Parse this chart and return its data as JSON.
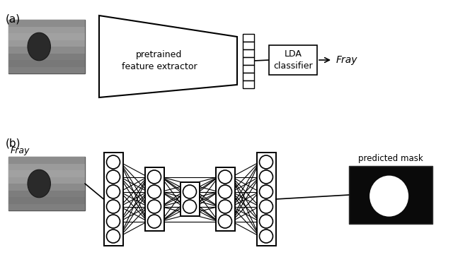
{
  "fig_width": 6.4,
  "fig_height": 3.88,
  "bg_color": "#ffffff",
  "panel_a_label": "(a)",
  "panel_b_label": "(b)",
  "fray_label_a": "Fray",
  "fray_label_b": "Fray",
  "pretrained_text": "pretrained\nfeature extractor",
  "lda_text": "LDA\nclassifier",
  "predicted_mask_text": "predicted mask",
  "line_color": "#000000"
}
